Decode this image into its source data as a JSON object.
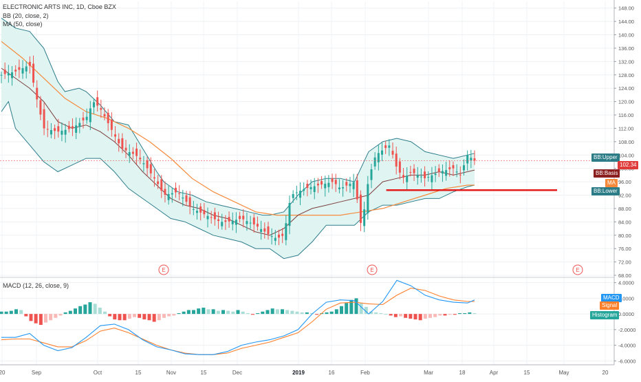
{
  "header": {
    "symbol_line": "ELECTRONIC ARTS INC, 1D, Cboe BZX",
    "bb_line": "BB (20, close, 2)",
    "ma_line": "MA (50, close)",
    "macd_line": "MACD (12, 26, close, 9)"
  },
  "colors": {
    "up": "#26a69a",
    "down": "#ef5350",
    "bb_fill": "#e0f4f1",
    "bb_band": "#2e7d8c",
    "bb_basis": "#7b3f3f",
    "ma": "#f58a3c",
    "macd": "#2196f3",
    "signal": "#ff7f2a",
    "hist_up": "#26a69a",
    "hist_up_light": "#a9ddd6",
    "hist_down": "#ef5350",
    "hist_down_light": "#f8b9b7",
    "support": "#e31b1b"
  },
  "tags": {
    "bb_upper": "BB:Upper",
    "price": "102.34",
    "bb_basis": "BB:Basis",
    "ma": "MA",
    "bb_lower": "BB:Lower",
    "macd": "MACD",
    "signal": "Signal",
    "histogram": "Histogram"
  },
  "earnings_marks": [
    "E",
    "E",
    "E"
  ],
  "chart_data": [
    {
      "type": "candlestick",
      "title": "ELECTRONIC ARTS INC, 1D, Cboe BZX",
      "x_tick_labels": [
        "20",
        "Sep",
        "Oct",
        "15",
        "Nov",
        "15",
        "Dec",
        "2019",
        "16",
        "Feb",
        "Mar",
        "18",
        "Apr",
        "15",
        "May",
        "20"
      ],
      "y_tick_labels": [
        "68.00",
        "72.00",
        "76.00",
        "80.00",
        "84.00",
        "88.00",
        "92.00",
        "96.00",
        "100.00",
        "104.00",
        "108.00",
        "112.00",
        "116.00",
        "120.00",
        "124.00",
        "128.00",
        "132.00",
        "136.00",
        "140.00",
        "144.00",
        "148.00"
      ],
      "ylim": [
        68,
        150
      ],
      "last_price": 102.34,
      "support_level": 93.5,
      "close_path": [
        [
          0,
          128
        ],
        [
          2,
          129
        ],
        [
          4,
          131
        ],
        [
          5,
          121
        ],
        [
          6,
          112
        ],
        [
          8,
          111
        ],
        [
          10,
          112
        ],
        [
          12,
          115
        ],
        [
          13,
          120
        ],
        [
          14,
          118
        ],
        [
          16,
          110
        ],
        [
          17,
          106
        ],
        [
          19,
          104
        ],
        [
          20,
          102
        ],
        [
          22,
          96
        ],
        [
          23,
          92
        ],
        [
          25,
          93
        ],
        [
          27,
          88
        ],
        [
          29,
          86
        ],
        [
          31,
          84
        ],
        [
          32,
          84
        ],
        [
          34,
          85
        ],
        [
          36,
          83
        ],
        [
          38,
          80
        ],
        [
          39,
          79
        ],
        [
          40,
          80
        ],
        [
          41,
          92
        ],
        [
          43,
          94
        ],
        [
          45,
          95
        ],
        [
          47,
          96
        ],
        [
          48,
          94
        ],
        [
          50,
          96
        ],
        [
          51,
          82
        ],
        [
          52,
          97
        ],
        [
          53,
          104
        ],
        [
          55,
          107
        ],
        [
          56,
          100
        ],
        [
          57,
          97
        ],
        [
          58,
          99
        ],
        [
          60,
          97
        ],
        [
          62,
          99
        ],
        [
          64,
          100
        ],
        [
          65,
          98
        ],
        [
          66,
          104
        ],
        [
          67,
          102.34
        ]
      ],
      "bb_upper_path": [
        [
          0,
          145
        ],
        [
          2,
          142
        ],
        [
          4,
          141
        ],
        [
          6,
          136
        ],
        [
          8,
          126
        ],
        [
          9,
          123
        ],
        [
          11,
          124
        ],
        [
          12,
          123
        ],
        [
          14,
          119
        ],
        [
          16,
          114
        ],
        [
          18,
          113
        ],
        [
          20,
          106
        ],
        [
          22,
          99
        ],
        [
          23,
          96
        ],
        [
          25,
          93
        ],
        [
          27,
          92
        ],
        [
          29,
          90
        ],
        [
          31,
          89
        ],
        [
          33,
          88
        ],
        [
          35,
          87
        ],
        [
          37,
          86
        ],
        [
          38,
          86
        ],
        [
          40,
          87
        ],
        [
          42,
          92
        ],
        [
          44,
          96
        ],
        [
          46,
          97
        ],
        [
          48,
          97
        ],
        [
          50,
          96
        ],
        [
          52,
          105
        ],
        [
          54,
          108
        ],
        [
          56,
          109
        ],
        [
          58,
          108
        ],
        [
          60,
          105
        ],
        [
          62,
          104
        ],
        [
          64,
          103
        ],
        [
          66,
          104
        ],
        [
          67,
          104.5
        ]
      ],
      "bb_basis_path": [
        [
          0,
          130
        ],
        [
          2,
          127
        ],
        [
          4,
          124
        ],
        [
          6,
          120
        ],
        [
          8,
          114
        ],
        [
          10,
          112
        ],
        [
          12,
          113
        ],
        [
          14,
          111
        ],
        [
          16,
          108
        ],
        [
          18,
          104
        ],
        [
          20,
          99
        ],
        [
          22,
          95
        ],
        [
          24,
          91
        ],
        [
          26,
          89
        ],
        [
          28,
          88
        ],
        [
          30,
          86
        ],
        [
          32,
          85
        ],
        [
          34,
          83
        ],
        [
          36,
          81
        ],
        [
          38,
          80
        ],
        [
          40,
          82
        ],
        [
          42,
          86
        ],
        [
          44,
          88
        ],
        [
          46,
          89
        ],
        [
          48,
          90
        ],
        [
          50,
          91
        ],
        [
          52,
          92
        ],
        [
          54,
          96
        ],
        [
          56,
          97
        ],
        [
          58,
          98
        ],
        [
          60,
          98
        ],
        [
          62,
          99
        ],
        [
          64,
          98
        ],
        [
          66,
          99
        ],
        [
          67,
          99.5
        ]
      ],
      "bb_lower_path": [
        [
          0,
          117
        ],
        [
          1,
          120
        ],
        [
          2,
          112
        ],
        [
          4,
          107
        ],
        [
          6,
          102
        ],
        [
          8,
          99
        ],
        [
          10,
          101
        ],
        [
          12,
          103
        ],
        [
          14,
          103
        ],
        [
          16,
          99
        ],
        [
          18,
          94
        ],
        [
          20,
          91
        ],
        [
          22,
          88
        ],
        [
          24,
          85
        ],
        [
          26,
          84
        ],
        [
          28,
          82
        ],
        [
          30,
          80
        ],
        [
          32,
          79
        ],
        [
          34,
          78
        ],
        [
          36,
          76
        ],
        [
          38,
          76
        ],
        [
          40,
          73
        ],
        [
          42,
          74
        ],
        [
          44,
          78
        ],
        [
          46,
          83
        ],
        [
          48,
          83
        ],
        [
          50,
          83
        ],
        [
          52,
          87
        ],
        [
          54,
          89
        ],
        [
          56,
          89
        ],
        [
          58,
          90
        ],
        [
          60,
          91
        ],
        [
          62,
          91
        ],
        [
          64,
          93
        ],
        [
          66,
          94.5
        ],
        [
          67,
          95
        ]
      ],
      "ma_path": [
        [
          0,
          138
        ],
        [
          3,
          133
        ],
        [
          6,
          127
        ],
        [
          9,
          121
        ],
        [
          12,
          117
        ],
        [
          15,
          115
        ],
        [
          18,
          112
        ],
        [
          21,
          108
        ],
        [
          24,
          103
        ],
        [
          27,
          97
        ],
        [
          30,
          93
        ],
        [
          33,
          90
        ],
        [
          36,
          87
        ],
        [
          39,
          86
        ],
        [
          42,
          86
        ],
        [
          45,
          86
        ],
        [
          48,
          86
        ],
        [
          51,
          87
        ],
        [
          54,
          88
        ],
        [
          57,
          90
        ],
        [
          60,
          92
        ],
        [
          63,
          94
        ],
        [
          66,
          95
        ],
        [
          67,
          95
        ]
      ]
    },
    {
      "type": "line",
      "title": "MACD (12, 26, close, 9)",
      "y_tick_labels": [
        "-6.0000",
        "-4.0000",
        "-2.0000",
        "0.0000",
        "2.0000",
        "4.0000"
      ],
      "ylim": [
        -6.5,
        4.5
      ],
      "macd_path": [
        [
          0,
          -3
        ],
        [
          2,
          -3
        ],
        [
          4,
          -2.5
        ],
        [
          6,
          -4
        ],
        [
          8,
          -4.7
        ],
        [
          10,
          -4.3
        ],
        [
          12,
          -3
        ],
        [
          14,
          -1.5
        ],
        [
          16,
          -1.3
        ],
        [
          18,
          -2
        ],
        [
          20,
          -3.3
        ],
        [
          22,
          -4.2
        ],
        [
          24,
          -4.6
        ],
        [
          26,
          -5.1
        ],
        [
          28,
          -5.2
        ],
        [
          30,
          -5.2
        ],
        [
          32,
          -4.8
        ],
        [
          34,
          -4
        ],
        [
          36,
          -3.6
        ],
        [
          38,
          -3.3
        ],
        [
          40,
          -2.8
        ],
        [
          42,
          -2
        ],
        [
          44,
          0
        ],
        [
          46,
          1.5
        ],
        [
          48,
          1.8
        ],
        [
          50,
          1.7
        ],
        [
          52,
          0
        ],
        [
          54,
          1.6
        ],
        [
          56,
          4.3
        ],
        [
          58,
          3.6
        ],
        [
          60,
          2.4
        ],
        [
          62,
          1.8
        ],
        [
          64,
          1.5
        ],
        [
          66,
          1.4
        ],
        [
          67,
          1.8
        ]
      ],
      "signal_path": [
        [
          0,
          -3.3
        ],
        [
          2,
          -3.2
        ],
        [
          4,
          -3.2
        ],
        [
          6,
          -3.7
        ],
        [
          8,
          -4.2
        ],
        [
          10,
          -4.2
        ],
        [
          12,
          -3.4
        ],
        [
          14,
          -2.2
        ],
        [
          16,
          -1.8
        ],
        [
          18,
          -2.4
        ],
        [
          20,
          -3.2
        ],
        [
          22,
          -4
        ],
        [
          24,
          -4.6
        ],
        [
          26,
          -5
        ],
        [
          28,
          -5.2
        ],
        [
          30,
          -5.2
        ],
        [
          32,
          -5
        ],
        [
          34,
          -4.4
        ],
        [
          36,
          -4
        ],
        [
          38,
          -3.6
        ],
        [
          40,
          -3
        ],
        [
          42,
          -2.4
        ],
        [
          44,
          -1
        ],
        [
          46,
          0.6
        ],
        [
          48,
          1.4
        ],
        [
          50,
          1.5
        ],
        [
          52,
          1.3
        ],
        [
          54,
          1.2
        ],
        [
          56,
          2.4
        ],
        [
          58,
          3.3
        ],
        [
          60,
          3
        ],
        [
          62,
          2.3
        ],
        [
          64,
          1.8
        ],
        [
          66,
          1.6
        ],
        [
          67,
          1.6
        ]
      ],
      "histogram": [
        0.3,
        0.3,
        0.4,
        0.6,
        0.5,
        -0.3,
        -0.9,
        -1.2,
        -1.4,
        -1.1,
        -0.8,
        -0.5,
        -0.2,
        0.2,
        0.4,
        0.7,
        1.0,
        1.2,
        1.5,
        1.3,
        0.8,
        0.3,
        -0.3,
        -0.7,
        -0.8,
        -0.8,
        -0.6,
        -0.4,
        -0.5,
        -0.7,
        -0.8,
        -1.0,
        -0.8,
        -0.5,
        -0.3,
        -0.2,
        0.1,
        0.3,
        0.5,
        0.5,
        0.7,
        0.8,
        0.6,
        0.6,
        0.4,
        0.5,
        0.4,
        0.3,
        0.5,
        0.3,
        0.1,
        -0.1,
        0.1,
        0.3,
        0.5,
        0.7,
        0.6,
        0.6,
        0.5,
        0.4,
        0.3,
        0.2,
        0.2,
        0.1,
        -0.1,
        0.1,
        0.2,
        0.3,
        0.6,
        1.0,
        1.4,
        1.8,
        2.0,
        1.4,
        0.9,
        0.3,
        0.2,
        0.1,
        0.0,
        -0.2,
        -0.4,
        -0.3,
        -0.5,
        -0.6,
        -0.7,
        -0.8,
        -0.6,
        -0.5,
        -0.4,
        -0.2,
        -0.2,
        -0.1,
        -0.1,
        0.1,
        0.1,
        0.2,
        0.1
      ]
    }
  ]
}
